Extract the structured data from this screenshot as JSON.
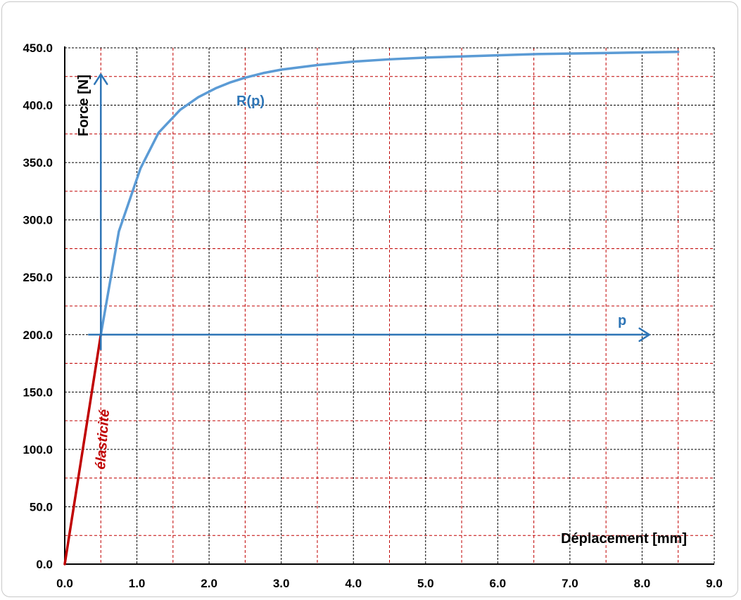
{
  "chart_data": {
    "type": "line",
    "title": "",
    "xlabel": "Déplacement  [mm]",
    "ylabel": "Force [N]",
    "xlim": [
      0,
      9
    ],
    "ylim": [
      0,
      450
    ],
    "x_ticks": [
      "0.0",
      "1.0",
      "2.0",
      "3.0",
      "4.0",
      "5.0",
      "6.0",
      "7.0",
      "8.0",
      "9.0"
    ],
    "y_ticks": [
      "0.0",
      "50.0",
      "100.0",
      "150.0",
      "200.0",
      "250.0",
      "300.0",
      "350.0",
      "400.0",
      "450.0"
    ],
    "x_tick_values": [
      0,
      1,
      2,
      3,
      4,
      5,
      6,
      7,
      8,
      9
    ],
    "y_tick_values": [
      0,
      50,
      100,
      150,
      200,
      250,
      300,
      350,
      400,
      450
    ],
    "grid": "major solid black, minor dashed dark red",
    "series": [
      {
        "color": "#C00000",
        "x": [
          0,
          0.5
        ],
        "y": [
          0,
          200
        ]
      },
      {
        "color": "#5B9BD5",
        "x": [
          0.5,
          0.75,
          1.05,
          1.3,
          1.6,
          1.85,
          2.1,
          2.3,
          2.5,
          2.75,
          3.0,
          3.5,
          4.0,
          4.5,
          5.0,
          5.5,
          6.0,
          6.5,
          7.0,
          7.5,
          8.0,
          8.5
        ],
        "y": [
          200,
          290,
          345,
          376,
          396,
          407,
          415,
          420,
          424,
          428,
          431,
          435,
          438,
          440,
          441.5,
          442.5,
          443.5,
          444.5,
          445,
          445.5,
          446,
          446.5
        ]
      }
    ],
    "annotations": {
      "curve_label": "R(p)",
      "p_label": "p",
      "elastic_label": "élasticité",
      "curve_label_color": "#2E75B6",
      "arrow_color": "#2E75B6",
      "elastic_color": "#C00000",
      "origin_x": 0.5,
      "origin_y": 200,
      "arrow_up_to_y": 427,
      "arrow_right_to_x": 8.1
    }
  }
}
